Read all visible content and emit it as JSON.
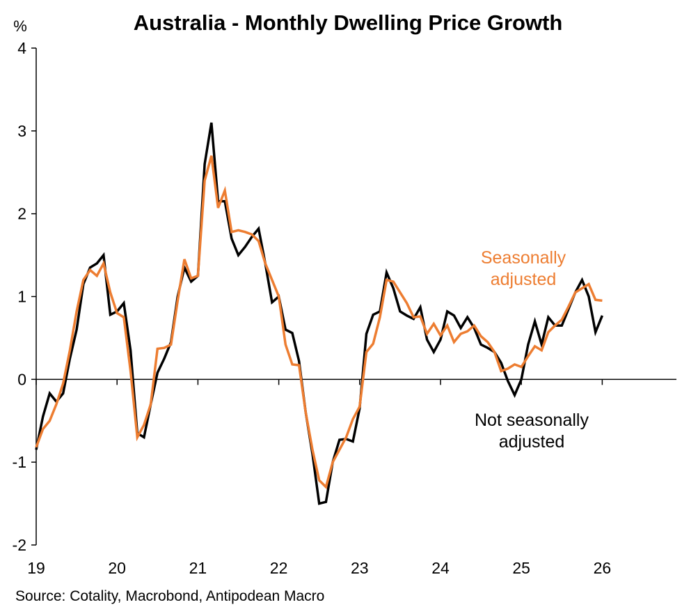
{
  "chart_data": {
    "type": "line",
    "title": "Australia - Monthly Dwelling Price Growth",
    "ylabel": "%",
    "xlabel": "",
    "ylim": [
      -2,
      4
    ],
    "yticks": [
      "-2",
      "-1",
      "0",
      "1",
      "2",
      "3",
      "4"
    ],
    "ytick_values": [
      -2,
      -1,
      0,
      1,
      2,
      3,
      4
    ],
    "xlim": [
      19,
      26.9
    ],
    "xticks": [
      "19",
      "20",
      "21",
      "22",
      "23",
      "24",
      "25",
      "26"
    ],
    "xtick_values": [
      19,
      20,
      21,
      22,
      23,
      24,
      25,
      26
    ],
    "x_start": 19.0,
    "x_step_months": 1,
    "grid": false,
    "source": "Source: Cotality, Macrobond, Antipodean Macro",
    "series": [
      {
        "name": "Not seasonally adjusted",
        "label_lines": [
          "Not seasonally",
          "adjusted"
        ],
        "color": "#000000",
        "values": [
          -0.85,
          -0.45,
          -0.17,
          -0.27,
          -0.17,
          0.25,
          0.6,
          1.15,
          1.35,
          1.4,
          1.5,
          0.78,
          0.82,
          0.92,
          0.35,
          -0.65,
          -0.7,
          -0.3,
          0.08,
          0.25,
          0.45,
          1.0,
          1.35,
          1.18,
          1.25,
          2.6,
          3.1,
          2.15,
          2.15,
          1.7,
          1.5,
          1.6,
          1.72,
          1.82,
          1.4,
          0.93,
          1.0,
          0.6,
          0.56,
          0.22,
          -0.4,
          -0.9,
          -1.5,
          -1.48,
          -1.0,
          -0.73,
          -0.72,
          -0.75,
          -0.35,
          0.55,
          0.78,
          0.82,
          1.29,
          1.1,
          0.82,
          0.77,
          0.73,
          0.87,
          0.48,
          0.33,
          0.48,
          0.82,
          0.77,
          0.62,
          0.75,
          0.62,
          0.42,
          0.38,
          0.33,
          0.2,
          -0.02,
          -0.19,
          0.0,
          0.42,
          0.7,
          0.42,
          0.75,
          0.65,
          0.65,
          0.85,
          1.05,
          1.2,
          1.0,
          0.57,
          0.77
        ]
      },
      {
        "name": "Seasonally adjusted",
        "label_lines": [
          "Seasonally",
          "adjusted"
        ],
        "color": "#ED7D31",
        "values": [
          -0.82,
          -0.6,
          -0.5,
          -0.3,
          -0.05,
          0.35,
          0.82,
          1.2,
          1.32,
          1.25,
          1.4,
          1.05,
          0.8,
          0.75,
          0.1,
          -0.7,
          -0.55,
          -0.3,
          0.37,
          0.38,
          0.42,
          0.95,
          1.45,
          1.22,
          1.25,
          2.4,
          2.7,
          2.07,
          2.28,
          1.78,
          1.8,
          1.78,
          1.75,
          1.67,
          1.4,
          1.2,
          1.0,
          0.42,
          0.18,
          0.17,
          -0.4,
          -0.85,
          -1.22,
          -1.3,
          -1.0,
          -0.85,
          -0.7,
          -0.48,
          -0.33,
          0.33,
          0.43,
          0.75,
          1.2,
          1.18,
          1.05,
          0.92,
          0.75,
          0.76,
          0.55,
          0.67,
          0.53,
          0.65,
          0.45,
          0.55,
          0.58,
          0.65,
          0.52,
          0.45,
          0.33,
          0.1,
          0.13,
          0.18,
          0.15,
          0.28,
          0.4,
          0.35,
          0.57,
          0.65,
          0.72,
          0.88,
          1.05,
          1.1,
          1.15,
          0.96,
          0.95
        ]
      }
    ]
  }
}
